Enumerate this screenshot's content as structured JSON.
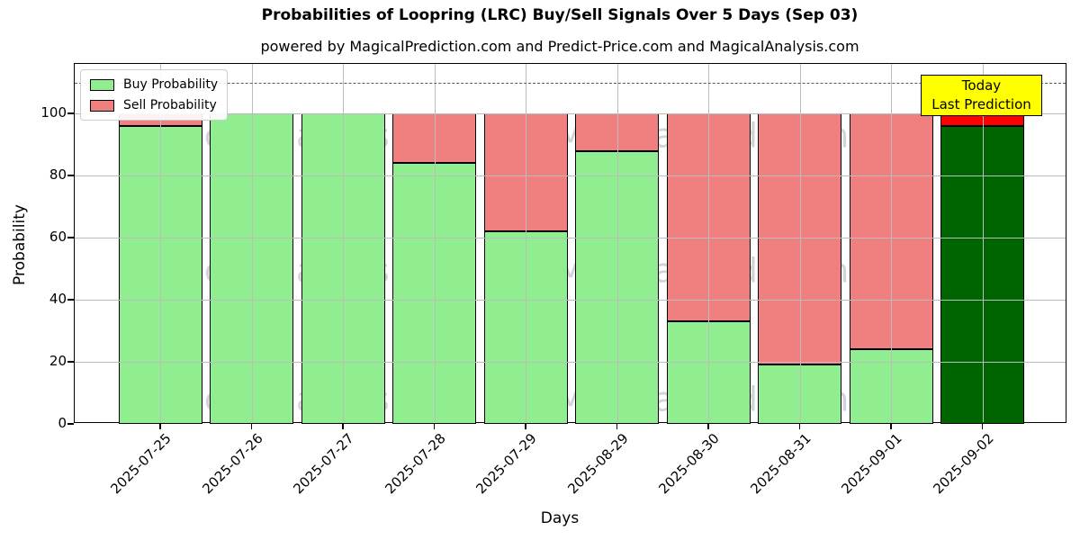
{
  "chart_data": {
    "type": "bar",
    "stacked": true,
    "title": "Probabilities of Loopring (LRC) Buy/Sell Signals Over 5 Days (Sep 03)",
    "subtitle": "powered by MagicalPrediction.com and Predict-Price.com and MagicalAnalysis.com",
    "categories": [
      "2025-07-25",
      "2025-07-26",
      "2025-07-27",
      "2025-07-28",
      "2025-07-29",
      "2025-08-29",
      "2025-08-30",
      "2025-08-31",
      "2025-09-01",
      "2025-09-02"
    ],
    "series": [
      {
        "name": "Buy Probability",
        "color": "#90ee90",
        "today_color": "#006400",
        "values": [
          96,
          100,
          100,
          84,
          62,
          88,
          33,
          19,
          24,
          96
        ]
      },
      {
        "name": "Sell Probability",
        "color": "#f08080",
        "today_color": "#ff0000",
        "values": [
          4,
          0,
          0,
          16,
          38,
          12,
          67,
          81,
          76,
          4
        ]
      }
    ],
    "today_index": 9,
    "xlabel": "Days",
    "ylabel": "Probability",
    "ylim": [
      0,
      116
    ],
    "yticks": [
      0,
      20,
      40,
      60,
      80,
      100
    ],
    "threshold_value": 110,
    "grid": true,
    "legend_position": "upper left"
  },
  "annotation": {
    "line1": "Today",
    "line2": "Last Prediction",
    "bg_color": "#ffff00"
  },
  "watermarks": {
    "texts": [
      "MagicalAnalysis.com",
      "MagicalPrediction.com"
    ]
  }
}
